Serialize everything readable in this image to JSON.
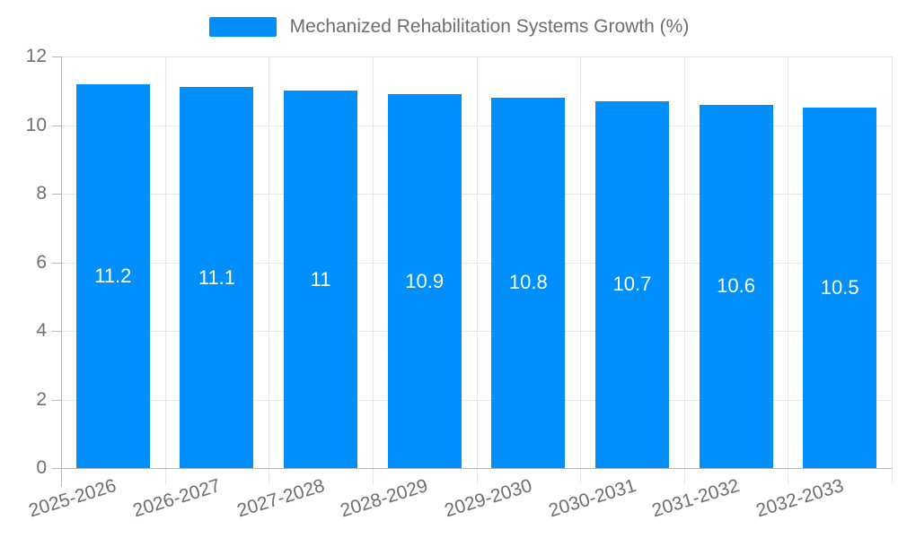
{
  "chart_data": {
    "type": "bar",
    "title": "",
    "legend_label": "Mechanized Rehabilitation Systems Growth (%)",
    "legend_position": "top",
    "categories": [
      "2025-2026",
      "2026-2027",
      "2027-2028",
      "2028-2029",
      "2029-2030",
      "2030-2031",
      "2031-2032",
      "2032-2033"
    ],
    "values": [
      11.2,
      11.1,
      11,
      10.9,
      10.8,
      10.7,
      10.6,
      10.5
    ],
    "data_labels": [
      "11.2",
      "11.1",
      "11",
      "10.9",
      "10.8",
      "10.7",
      "10.6",
      "10.5"
    ],
    "xlabel": "",
    "ylabel": "",
    "ylim": [
      0,
      12
    ],
    "yticks": [
      0,
      2,
      4,
      6,
      8,
      10,
      12
    ],
    "grid": true,
    "bar_color": "#008FFB",
    "data_label_color": "#ffffff",
    "grid_color": "#e7e7e7",
    "axis_color": "#b6b6b6",
    "tick_label_color": "#6f6f6f",
    "legend_text_color": "#6e6e6e"
  }
}
